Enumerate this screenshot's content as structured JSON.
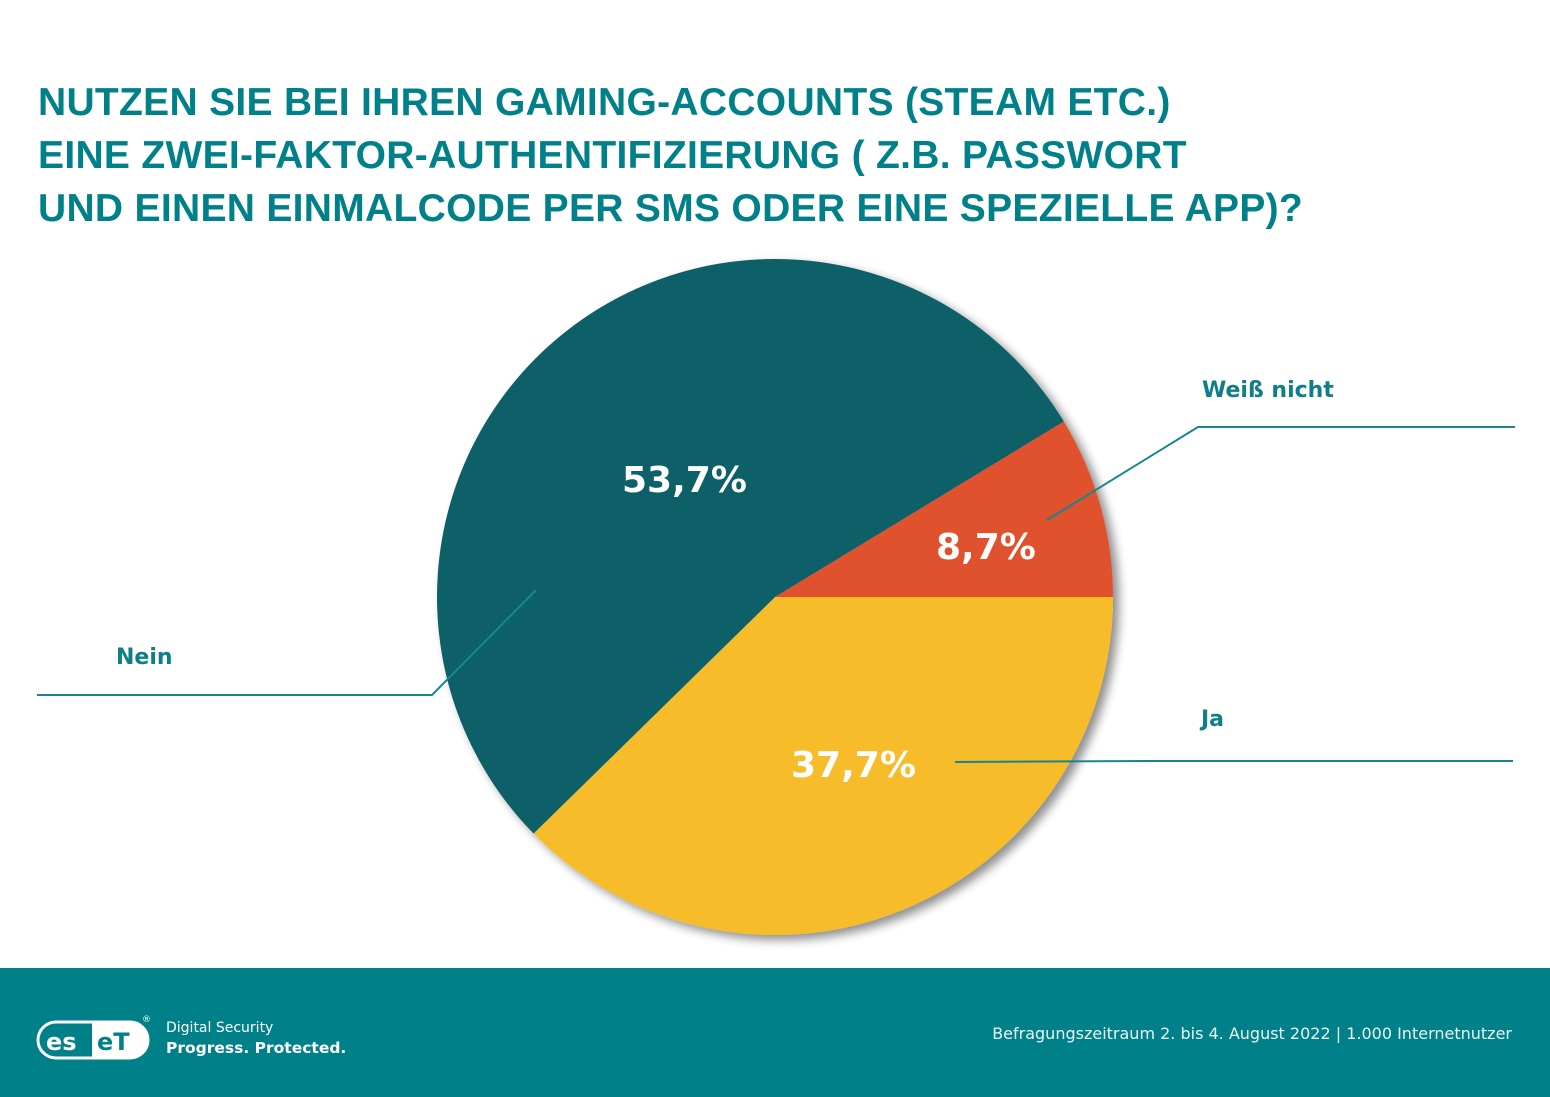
{
  "chart_data": {
    "type": "pie",
    "title": "NUTZEN SIE BEI IHREN GAMING-ACCOUNTS (STEAM ETC.) EINE ZWEI-FAKTOR-AUTHENTIFIZIERUNG ( Z.B. PASSWORT UND EINEN EINMALCODE PER SMS ODER EINE SPEZIELLE APP)?",
    "title_lines": [
      "NUTZEN SIE BEI IHREN GAMING-ACCOUNTS (STEAM ETC.)",
      "EINE ZWEI-FAKTOR-AUTHENTIFIZIERUNG ( Z.B. PASSWORT",
      "UND EINEN EINMALCODE PER SMS ODER EINE SPEZIELLE APP)?"
    ],
    "slices": [
      {
        "label": "Ja",
        "value": 37.7,
        "value_label": "37,7%",
        "color": "#f6bc2b"
      },
      {
        "label": "Nein",
        "value": 53.7,
        "value_label": "53,7%",
        "color": "#0f5f68"
      },
      {
        "label": "Weiß nicht",
        "value": 8.7,
        "value_label": "8,7%",
        "color": "#e0512e"
      }
    ],
    "unit": "%",
    "start": "3 o'clock, clockwise"
  },
  "colors": {
    "title": "#008089",
    "label": "#0e7e87",
    "leader_line": "#17868f",
    "footer_bg": "#00818a"
  },
  "footer": {
    "brand": "eset",
    "registered_mark": "®",
    "tagline_1": "Digital Security",
    "tagline_2": "Progress. Protected.",
    "source": "Befragungszeitraum 2. bis 4. August 2022 | 1.000 Internetnutzer"
  }
}
